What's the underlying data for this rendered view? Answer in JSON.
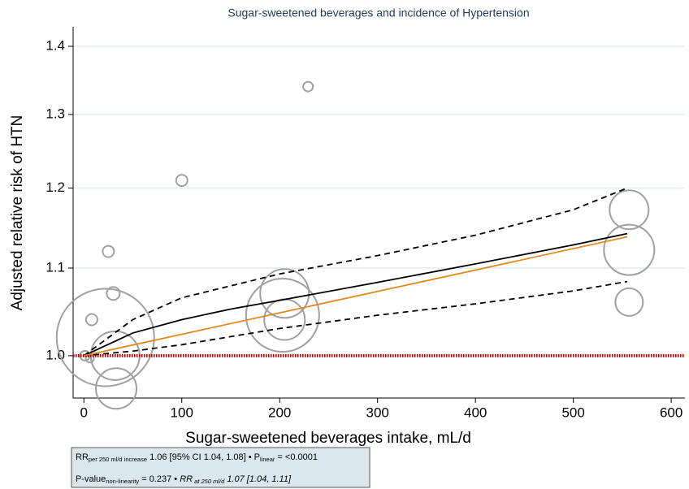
{
  "chart_data": {
    "type": "bubble-doseresponse",
    "title": "Sugar-sweetened beverages and incidence of Hypertension",
    "xlabel": "Sugar-sweetened beverages intake, mL/d",
    "ylabel": "Adjusted relative risk of HTN",
    "xlim": [
      -11,
      614
    ],
    "xticks": [
      0,
      100,
      200,
      300,
      400,
      500,
      600
    ],
    "ylim": [
      0.955,
      1.43
    ],
    "log_y": true,
    "yticks": [
      {
        "value": 1,
        "label": "1.0"
      },
      1.1,
      1.2,
      1.3,
      1.4
    ],
    "grid": true,
    "reference_line": 1,
    "reference_color": "#c00000",
    "points": {
      "color": "#a0a0a0",
      "x": [
        1,
        6,
        8,
        25,
        30,
        22,
        32,
        33,
        100,
        229,
        205,
        203,
        205,
        557,
        557,
        557
      ],
      "values": [
        1.0,
        0.997,
        1.04,
        1.12,
        1.07,
        1.02,
        1.0,
        0.965,
        1.21,
        1.34,
        1.07,
        1.045,
        1.04,
        1.172,
        1.122,
        1.06
      ],
      "sizes": [
        6,
        5,
        7,
        7,
        8,
        60,
        30,
        25,
        7,
        6,
        30,
        45,
        25,
        24,
        31,
        17
      ]
    },
    "lines": [
      {
        "color": "#000000",
        "dash": "none",
        "x": [
          0,
          50,
          100,
          150,
          200,
          300,
          400,
          500,
          555
        ],
        "values": [
          1.0,
          1.025,
          1.04,
          1.052,
          1.062,
          1.083,
          1.105,
          1.128,
          1.142
        ]
      },
      {
        "color": "#000000",
        "dash": "7,5",
        "x": [
          0,
          50,
          100,
          200,
          300,
          400,
          500,
          555
        ],
        "values": [
          1.0,
          1.04,
          1.065,
          1.093,
          1.115,
          1.14,
          1.172,
          1.2
        ]
      },
      {
        "color": "#000000",
        "dash": "7,5",
        "x": [
          0,
          50,
          100,
          200,
          300,
          400,
          500,
          555
        ],
        "values": [
          1.0,
          1.005,
          1.012,
          1.03,
          1.045,
          1.058,
          1.073,
          1.084
        ]
      },
      {
        "color": "#e08a1e",
        "dash": "none",
        "x": [
          0,
          555
        ],
        "values": [
          1.0,
          1.138
        ]
      }
    ],
    "note": [
      [
        {
          "text": "RR",
          "style": "normal"
        },
        {
          "text": "per 250 ml/d increase",
          "style": "sub"
        },
        {
          "text": " 1.06 [95% CI 1.04, 1.08] • P",
          "style": "normal"
        },
        {
          "text": "linear",
          "style": "sub"
        },
        {
          "text": " = <0.0001",
          "style": "normal"
        }
      ],
      [
        {
          "text": "P-value",
          "style": "normal"
        },
        {
          "text": "non-linearity",
          "style": "sub"
        },
        {
          "text": " = 0.237 • ",
          "style": "normal"
        },
        {
          "text": "RR",
          "style": "italic"
        },
        {
          "text": " at 250 ml/d",
          "style": "italic-sub"
        },
        {
          "text": " 1.07 [1.04, 1.11]",
          "style": "italic"
        }
      ]
    ]
  }
}
